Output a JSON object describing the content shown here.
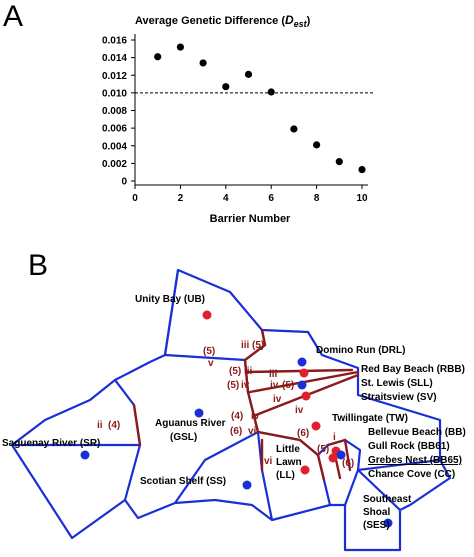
{
  "panels": {
    "a": "A",
    "b": "B"
  },
  "chart_data": {
    "type": "scatter",
    "title_prefix": "Average Genetic Difference (",
    "title_var": "D",
    "title_sub": "est",
    "title_suffix": ")",
    "xlabel": "Barrier Number",
    "xlim": [
      0,
      10
    ],
    "ylim": [
      0,
      0.016
    ],
    "xticks": [
      "0",
      "2",
      "4",
      "6",
      "8",
      "10"
    ],
    "yticks": [
      "0",
      "0.002",
      "0.004",
      "0.006",
      "0.008",
      "0.010",
      "0.012",
      "0.014",
      "0.016"
    ],
    "reference_line": 0.01,
    "point_color": "#000000",
    "x": [
      1,
      2,
      3,
      4,
      5,
      6,
      7,
      8,
      9,
      10
    ],
    "y": [
      0.0141,
      0.0152,
      0.0134,
      0.0107,
      0.0121,
      0.0101,
      0.0059,
      0.0041,
      0.0022,
      0.0013
    ]
  },
  "map": {
    "colors": {
      "cell_edge": "#1a2fd6",
      "barrier": "#8b1a1a",
      "red_site": "#e0202a",
      "blue_site": "#1a2fd6"
    },
    "sites": {
      "UB": "Unity Bay (UB)",
      "DRL": "Domino Run (DRL)",
      "RBB": "Red Bay Beach (RBB)",
      "SLL": "St. Lewis (SLL)",
      "SV": "Straitsview (SV)",
      "TW": "Twillingate (TW)",
      "BB": "Bellevue Beach (BB)",
      "BB61": "Gull Rock (BB61)",
      "BB65": "Grebes Nest (BB65)",
      "CC": "Chance Cove (CC)",
      "SR": "Saguenay River (SR)",
      "GSL_1": "Aguanus River",
      "GSL_2": "(GSL)",
      "LL_1": "Little",
      "LL_2": "Lawn",
      "LL_3": "(LL)",
      "SS": "Scotian Shelf (SS)",
      "SES_1": "Southeast",
      "SES_2": "Shoal",
      "SES_3": "(SES)"
    },
    "barrier_labels": {
      "b1": "iii",
      "b2": "(5)",
      "b3": "(5)",
      "b4": "v",
      "b5": "(5)",
      "b6": "iii",
      "b7": "iii",
      "b8": "(5)",
      "b9": "iv",
      "b10": "iv",
      "b11": "(5)",
      "b12": "iv",
      "b13": "iv",
      "b14": "ii",
      "b15": "(4)",
      "b16": "(4)",
      "b17": "iv",
      "b18": "(6)",
      "b19": "vi",
      "b20": "(6)",
      "b21": "vi",
      "b22": "(5)",
      "b23": "i",
      "b24": "(6)",
      "b25": "i"
    }
  }
}
